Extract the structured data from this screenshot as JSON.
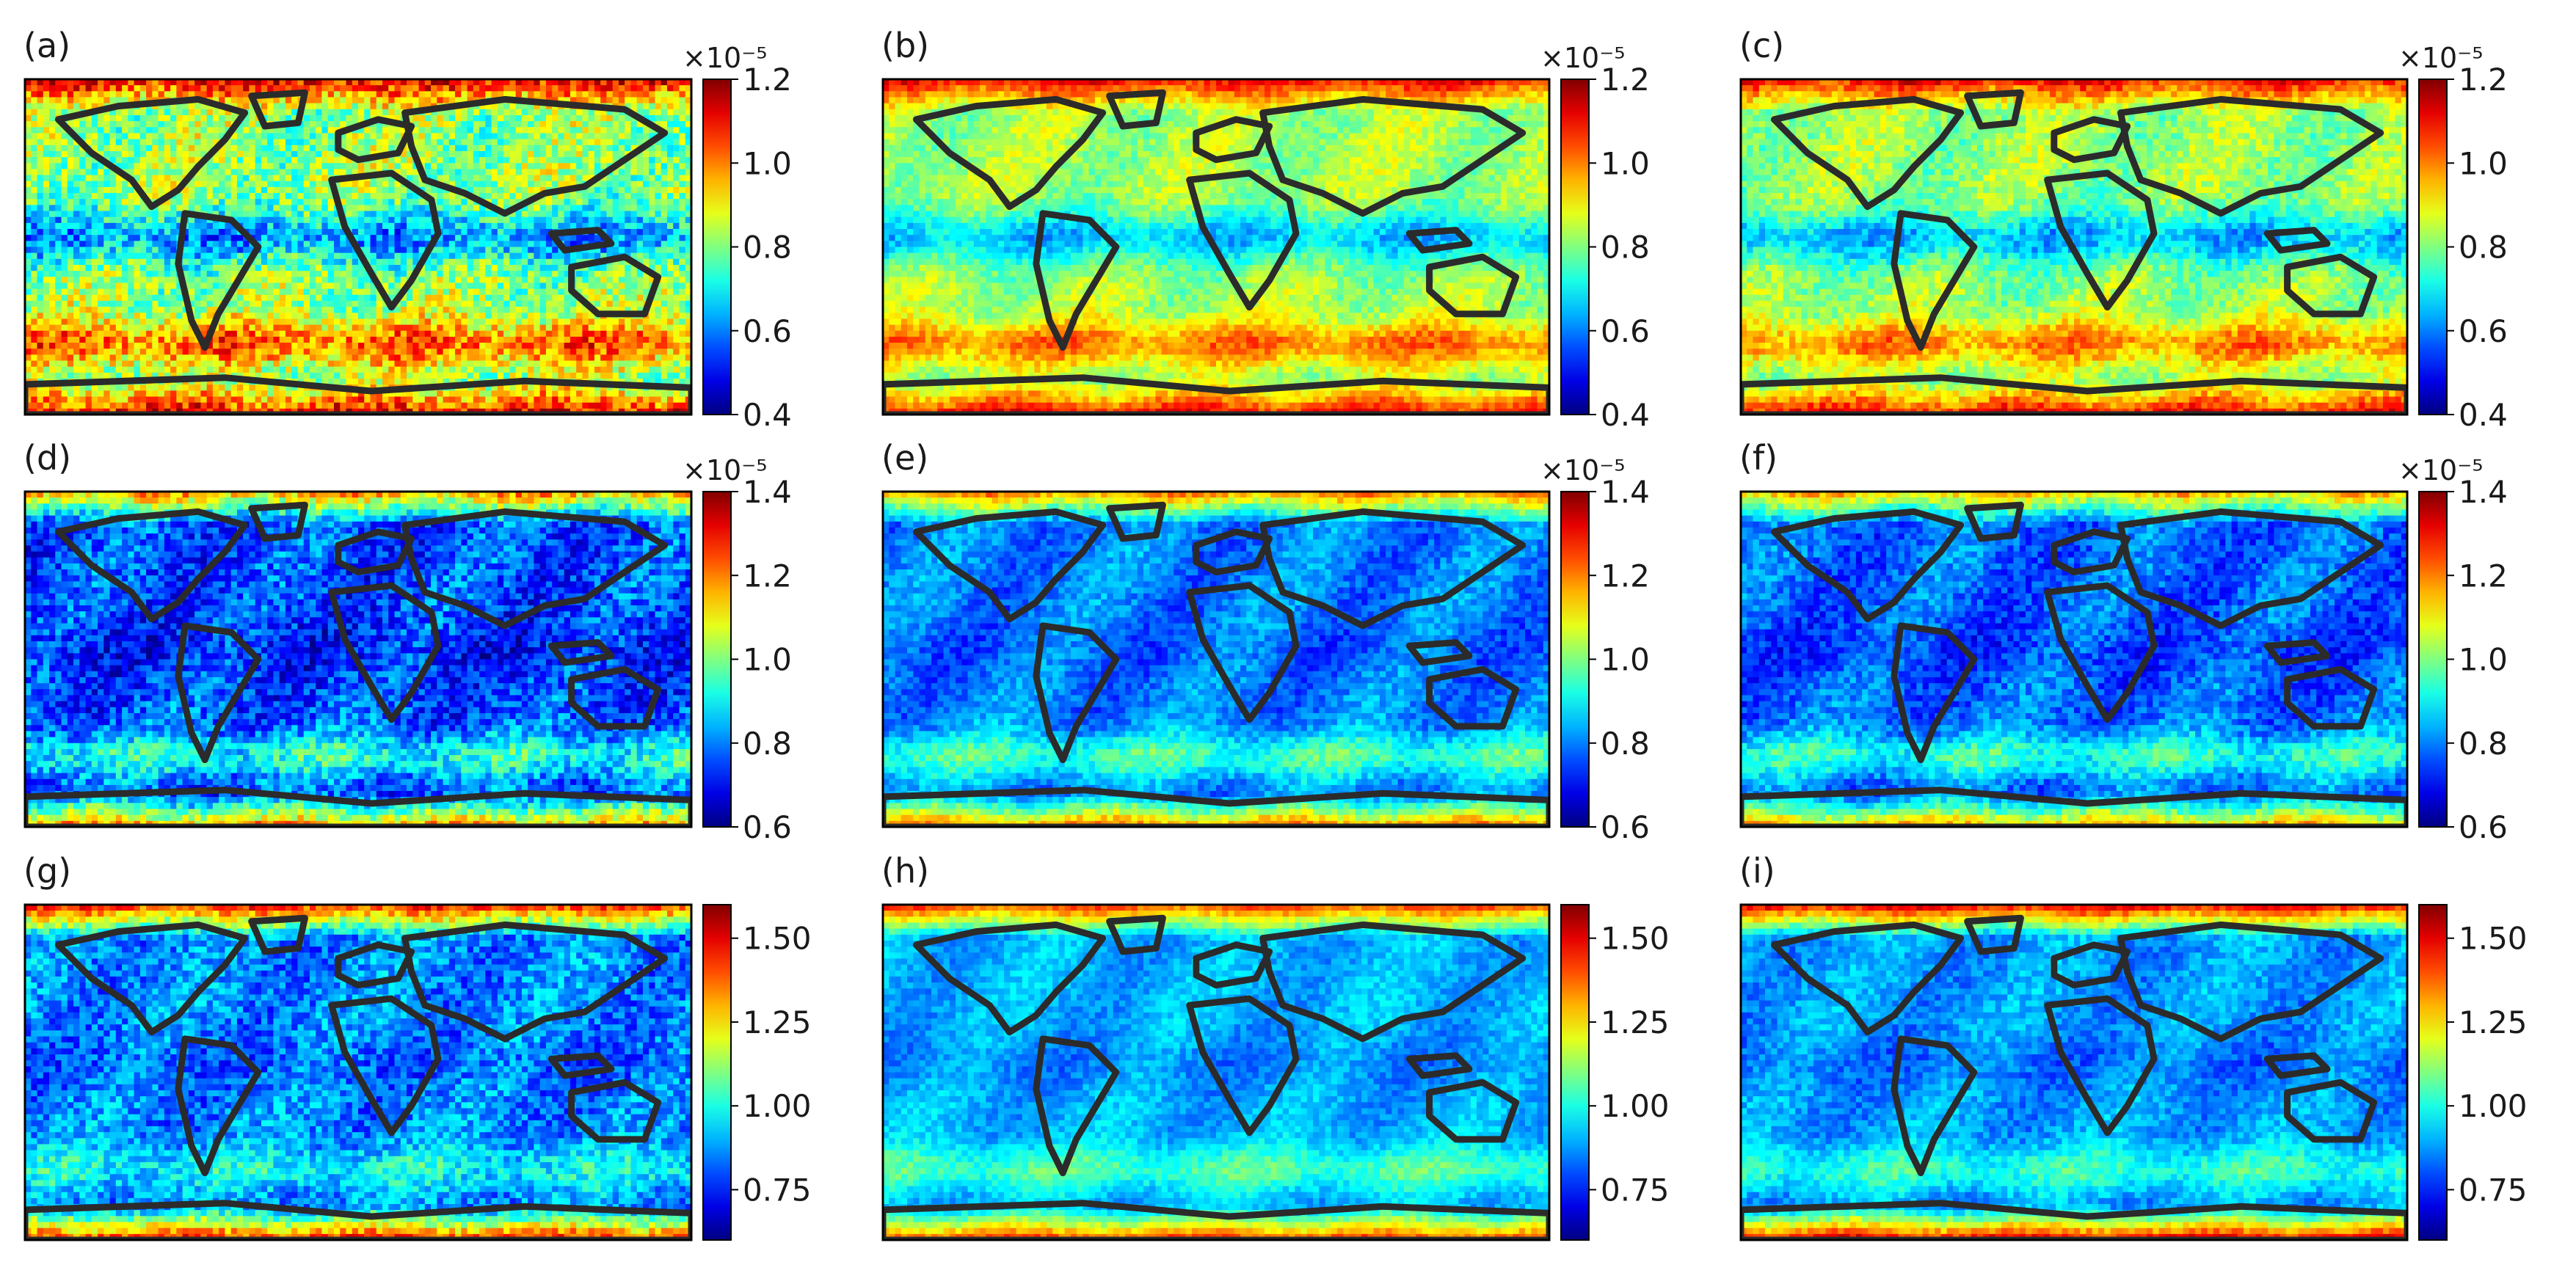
{
  "chart_data": [
    {
      "type": "heatmap",
      "panel_label": "(a)",
      "colorbar": {
        "multiplier": "×10⁻⁵",
        "min": 0.4,
        "max": 1.2,
        "ticks": [
          0.4,
          0.6,
          0.8,
          1.0,
          1.2
        ],
        "tick_labels": [
          "0.4",
          "0.6",
          "0.8",
          "1.0",
          "1.2"
        ],
        "colormap": "jet"
      },
      "field": {
        "mean": 0.82,
        "tropical_low": 0.62,
        "southern_high": 1.02,
        "polar_high": 1.12,
        "noise": 0.11
      }
    },
    {
      "type": "heatmap",
      "panel_label": "(b)",
      "colorbar": {
        "multiplier": "×10⁻⁵",
        "min": 0.4,
        "max": 1.2,
        "ticks": [
          0.4,
          0.6,
          0.8,
          1.0,
          1.2
        ],
        "tick_labels": [
          "0.4",
          "0.6",
          "0.8",
          "1.0",
          "1.2"
        ],
        "colormap": "jet"
      },
      "field": {
        "mean": 0.83,
        "tropical_low": 0.66,
        "southern_high": 1.0,
        "polar_high": 1.1,
        "noise": 0.05
      }
    },
    {
      "type": "heatmap",
      "panel_label": "(c)",
      "colorbar": {
        "multiplier": "×10⁻⁵",
        "min": 0.4,
        "max": 1.2,
        "ticks": [
          0.4,
          0.6,
          0.8,
          1.0,
          1.2
        ],
        "tick_labels": [
          "0.4",
          "0.6",
          "0.8",
          "1.0",
          "1.2"
        ],
        "colormap": "jet"
      },
      "field": {
        "mean": 0.82,
        "tropical_low": 0.65,
        "southern_high": 0.99,
        "polar_high": 1.1,
        "noise": 0.06
      }
    },
    {
      "type": "heatmap",
      "panel_label": "(d)",
      "colorbar": {
        "multiplier": "×10⁻⁵",
        "min": 0.6,
        "max": 1.4,
        "ticks": [
          0.6,
          0.8,
          1.0,
          1.2,
          1.4
        ],
        "tick_labels": [
          "0.6",
          "0.8",
          "1.0",
          "1.2",
          "1.4"
        ],
        "colormap": "jet"
      },
      "field": {
        "mean": 0.76,
        "tropical_low": 0.72,
        "southern_high": 0.92,
        "polar_high": 1.18,
        "noise": 0.09
      }
    },
    {
      "type": "heatmap",
      "panel_label": "(e)",
      "colorbar": {
        "multiplier": "×10⁻⁵",
        "min": 0.6,
        "max": 1.4,
        "ticks": [
          0.6,
          0.8,
          1.0,
          1.2,
          1.4
        ],
        "tick_labels": [
          "0.6",
          "0.8",
          "1.0",
          "1.2",
          "1.4"
        ],
        "colormap": "jet"
      },
      "field": {
        "mean": 0.8,
        "tropical_low": 0.78,
        "southern_high": 0.95,
        "polar_high": 1.2,
        "noise": 0.05
      }
    },
    {
      "type": "heatmap",
      "panel_label": "(f)",
      "colorbar": {
        "multiplier": "×10⁻⁵",
        "min": 0.6,
        "max": 1.4,
        "ticks": [
          0.6,
          0.8,
          1.0,
          1.2,
          1.4
        ],
        "tick_labels": [
          "0.6",
          "0.8",
          "1.0",
          "1.2",
          "1.4"
        ],
        "colormap": "jet"
      },
      "field": {
        "mean": 0.78,
        "tropical_low": 0.75,
        "southern_high": 0.93,
        "polar_high": 1.16,
        "noise": 0.06
      }
    },
    {
      "type": "heatmap",
      "panel_label": "(g)",
      "colorbar": {
        "multiplier": "",
        "min": 0.6,
        "max": 1.6,
        "ticks": [
          0.75,
          1.0,
          1.25,
          1.5
        ],
        "tick_labels": [
          "0.75",
          "1.00",
          "1.25",
          "1.50"
        ],
        "colormap": "jet"
      },
      "field": {
        "mean": 0.86,
        "tropical_low": 0.82,
        "southern_high": 0.98,
        "polar_high": 1.45,
        "noise": 0.1
      }
    },
    {
      "type": "heatmap",
      "panel_label": "(h)",
      "colorbar": {
        "multiplier": "",
        "min": 0.6,
        "max": 1.6,
        "ticks": [
          0.75,
          1.0,
          1.25,
          1.5
        ],
        "tick_labels": [
          "0.75",
          "1.00",
          "1.25",
          "1.50"
        ],
        "colormap": "jet"
      },
      "field": {
        "mean": 0.9,
        "tropical_low": 0.86,
        "southern_high": 1.05,
        "polar_high": 1.42,
        "noise": 0.05
      }
    },
    {
      "type": "heatmap",
      "panel_label": "(i)",
      "colorbar": {
        "multiplier": "",
        "min": 0.6,
        "max": 1.6,
        "ticks": [
          0.75,
          1.0,
          1.25,
          1.5
        ],
        "tick_labels": [
          "0.75",
          "1.00",
          "1.25",
          "1.50"
        ],
        "colormap": "jet"
      },
      "field": {
        "mean": 0.88,
        "tropical_low": 0.84,
        "southern_high": 1.02,
        "polar_high": 1.5,
        "noise": 0.06
      }
    }
  ],
  "colors": {
    "coastline": "#2b2b2b",
    "frame": "#000000"
  }
}
